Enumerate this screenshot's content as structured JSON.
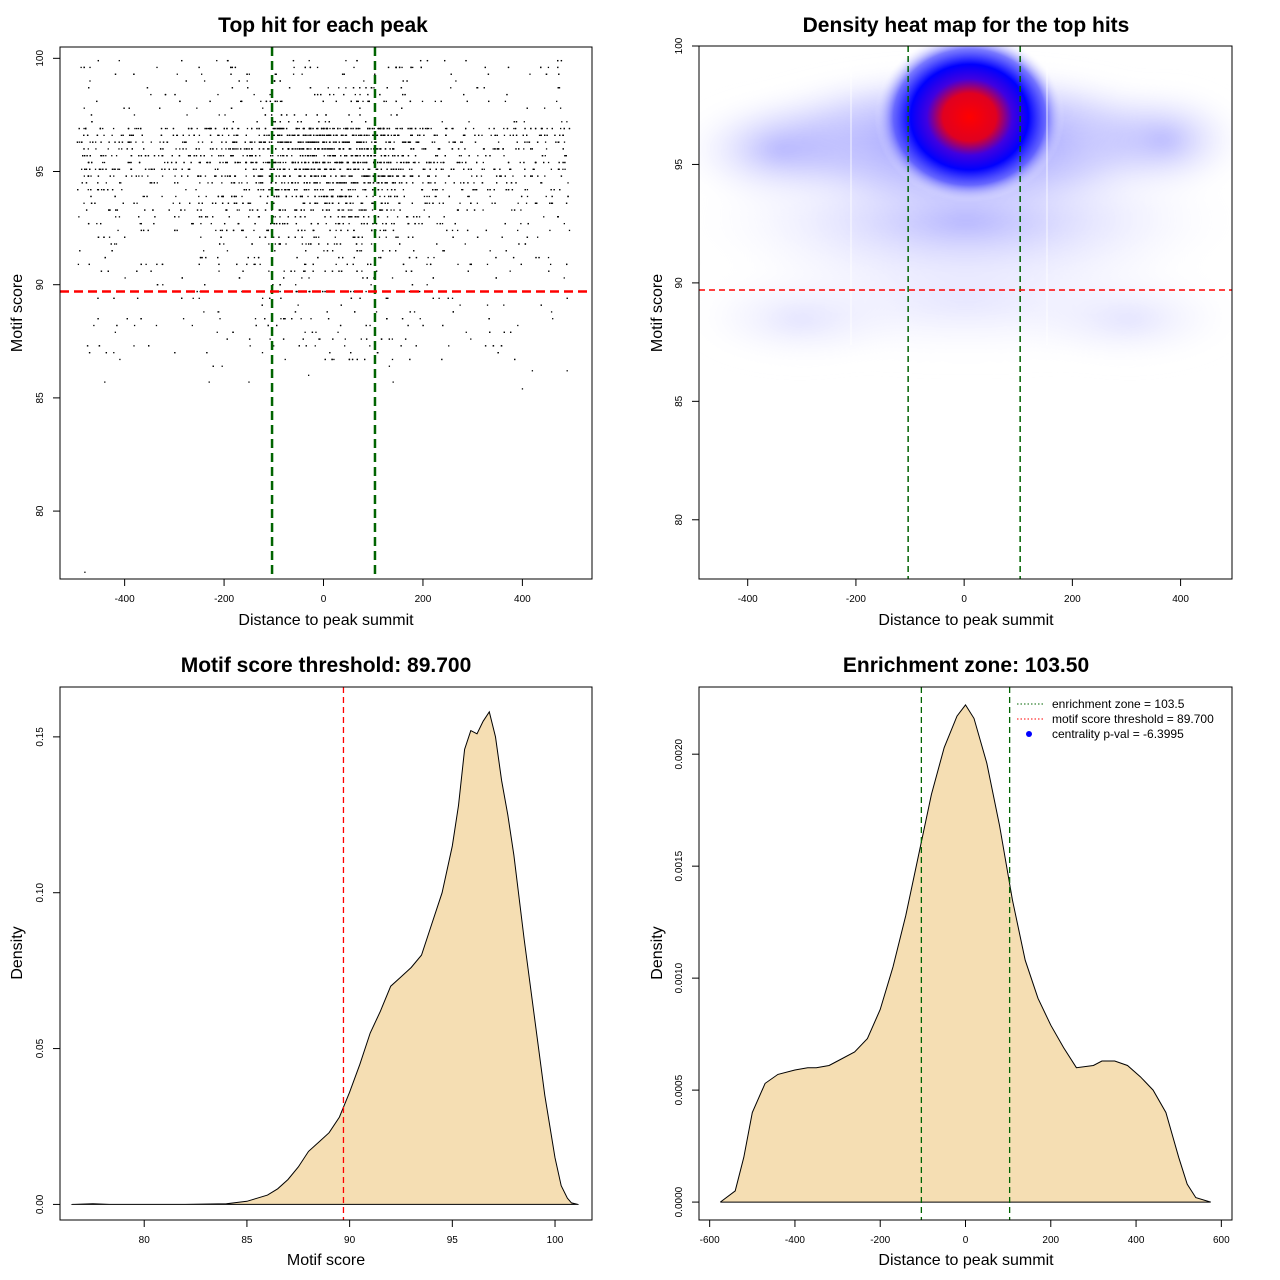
{
  "chart_data": [
    {
      "type": "scatter",
      "title": "Top hit for each peak",
      "xlabel": "Distance to peak summit",
      "ylabel": "Motif score",
      "xlim": [
        -530,
        540
      ],
      "ylim": [
        77,
        100.5
      ],
      "xticks": [
        -400,
        -200,
        0,
        200,
        400
      ],
      "yticks": [
        80,
        85,
        90,
        95,
        100
      ],
      "point_color": "#000000",
      "points_summary": {
        "x_range": [
          -495,
          495
        ],
        "y_range": [
          77.3,
          100
        ],
        "score_step": 0.3,
        "main_cluster": "dense band of points between scores 90 and 100, densest near distance 0 and scores 95-98",
        "outliers": [
          [
            -480,
            77.3
          ],
          [
            -230,
            85.7
          ],
          [
            -440,
            85.7
          ],
          [
            140,
            85.7
          ],
          [
            400,
            85.4
          ],
          [
            -150,
            85.7
          ],
          [
            -30,
            86.0
          ],
          [
            420,
            86.2
          ],
          [
            490,
            86.2
          ]
        ]
      },
      "reference_lines": [
        {
          "orientation": "vertical",
          "x": -103.5,
          "color": "#006400",
          "style": "dashed"
        },
        {
          "orientation": "vertical",
          "x": 103.5,
          "color": "#006400",
          "style": "dashed"
        },
        {
          "orientation": "horizontal",
          "y": 89.7,
          "color": "#ff0000",
          "style": "dashed"
        }
      ]
    },
    {
      "type": "heatmap",
      "title": "Density heat map for the top hits",
      "xlabel": "Distance to peak summit",
      "ylabel": "Motif score",
      "xlim": [
        -490,
        495
      ],
      "ylim": [
        77.5,
        100
      ],
      "xticks": [
        -400,
        -200,
        0,
        200,
        400
      ],
      "yticks": [
        80,
        85,
        90,
        95,
        100
      ],
      "colors": [
        "#ffffff",
        "#0000ff",
        "#ff0000"
      ],
      "peak": {
        "x": 10,
        "y": 97
      },
      "reference_lines": [
        {
          "orientation": "vertical",
          "x": -103.5,
          "color": "#006400",
          "style": "dashed"
        },
        {
          "orientation": "vertical",
          "x": 103.5,
          "color": "#006400",
          "style": "dashed"
        },
        {
          "orientation": "horizontal",
          "y": 89.7,
          "color": "#ff0000",
          "style": "dashed"
        }
      ]
    },
    {
      "type": "area",
      "title": "Motif score threshold: 89.700",
      "xlabel": "Motif score",
      "ylabel": "Density",
      "xlim": [
        75.9,
        101.8
      ],
      "ylim": [
        -0.005,
        0.166
      ],
      "xticks": [
        80,
        85,
        90,
        95,
        100
      ],
      "yticks": [
        "0.00",
        "0.05",
        "0.10",
        "0.15"
      ],
      "fill_color": "#f5deb3",
      "x": [
        76.5,
        77.5,
        78.3,
        80,
        82,
        84,
        85,
        85.5,
        86,
        86.5,
        87,
        87.5,
        88,
        88.5,
        89,
        89.5,
        90,
        90.5,
        91,
        91.5,
        92,
        92.5,
        93,
        93.5,
        94,
        94.5,
        95,
        95.3,
        95.6,
        95.9,
        96.2,
        96.5,
        96.8,
        97.1,
        97.4,
        97.7,
        98,
        98.5,
        99,
        99.5,
        100,
        100.3,
        100.6,
        100.8,
        101.1
      ],
      "values": [
        0.0,
        0.0002,
        0.0,
        0.0,
        0.0,
        0.0002,
        0.001,
        0.002,
        0.003,
        0.005,
        0.008,
        0.012,
        0.017,
        0.02,
        0.023,
        0.028,
        0.036,
        0.045,
        0.055,
        0.062,
        0.07,
        0.073,
        0.076,
        0.08,
        0.09,
        0.1,
        0.115,
        0.128,
        0.146,
        0.152,
        0.151,
        0.155,
        0.158,
        0.15,
        0.136,
        0.125,
        0.112,
        0.085,
        0.06,
        0.035,
        0.015,
        0.006,
        0.002,
        0.0005,
        0.0
      ],
      "reference_lines": [
        {
          "orientation": "vertical",
          "x": 89.7,
          "color": "#ff0000",
          "style": "dashed"
        }
      ]
    },
    {
      "type": "area",
      "title": "Enrichment zone: 103.50",
      "xlabel": "Distance to peak summit",
      "ylabel": "Density",
      "xlim": [
        -625,
        625
      ],
      "ylim": [
        -8e-05,
        0.0023
      ],
      "xticks": [
        -600,
        -400,
        -200,
        0,
        200,
        400,
        600
      ],
      "yticks": [
        "0.0000",
        "0.0005",
        "0.0010",
        "0.0015",
        "0.0020"
      ],
      "fill_color": "#f5deb3",
      "x": [
        -575,
        -540,
        -520,
        -500,
        -470,
        -440,
        -400,
        -370,
        -350,
        -320,
        -300,
        -260,
        -230,
        -200,
        -170,
        -140,
        -110,
        -80,
        -50,
        -20,
        0,
        20,
        50,
        80,
        110,
        140,
        170,
        200,
        230,
        260,
        300,
        320,
        350,
        380,
        410,
        440,
        470,
        500,
        520,
        540,
        575
      ],
      "values": [
        0.0,
        5e-05,
        0.0002,
        0.0004,
        0.00053,
        0.00057,
        0.00059,
        0.0006,
        0.0006,
        0.00061,
        0.00063,
        0.00067,
        0.00073,
        0.00086,
        0.00105,
        0.00128,
        0.00155,
        0.00182,
        0.00203,
        0.00217,
        0.00222,
        0.00216,
        0.00196,
        0.00168,
        0.00135,
        0.00108,
        0.00091,
        0.00079,
        0.00069,
        0.0006,
        0.00061,
        0.00063,
        0.00063,
        0.00061,
        0.00056,
        0.0005,
        0.0004,
        0.0002,
        8e-05,
        2e-05,
        0.0
      ],
      "reference_lines": [
        {
          "orientation": "vertical",
          "x": -103.5,
          "color": "#006400",
          "style": "dashed"
        },
        {
          "orientation": "vertical",
          "x": 103.5,
          "color": "#006400",
          "style": "dashed"
        }
      ],
      "legend": {
        "position": "top-right",
        "entries": [
          {
            "label": "enrichment zone = 103.5",
            "color": "#006400",
            "symbol": "dotted-line"
          },
          {
            "label": "motif score threshold = 89.700",
            "color": "#ff0000",
            "symbol": "dotted-line"
          },
          {
            "label": "centrality p-val = -6.3995",
            "color": "#0000ff",
            "symbol": "point"
          }
        ]
      }
    }
  ]
}
